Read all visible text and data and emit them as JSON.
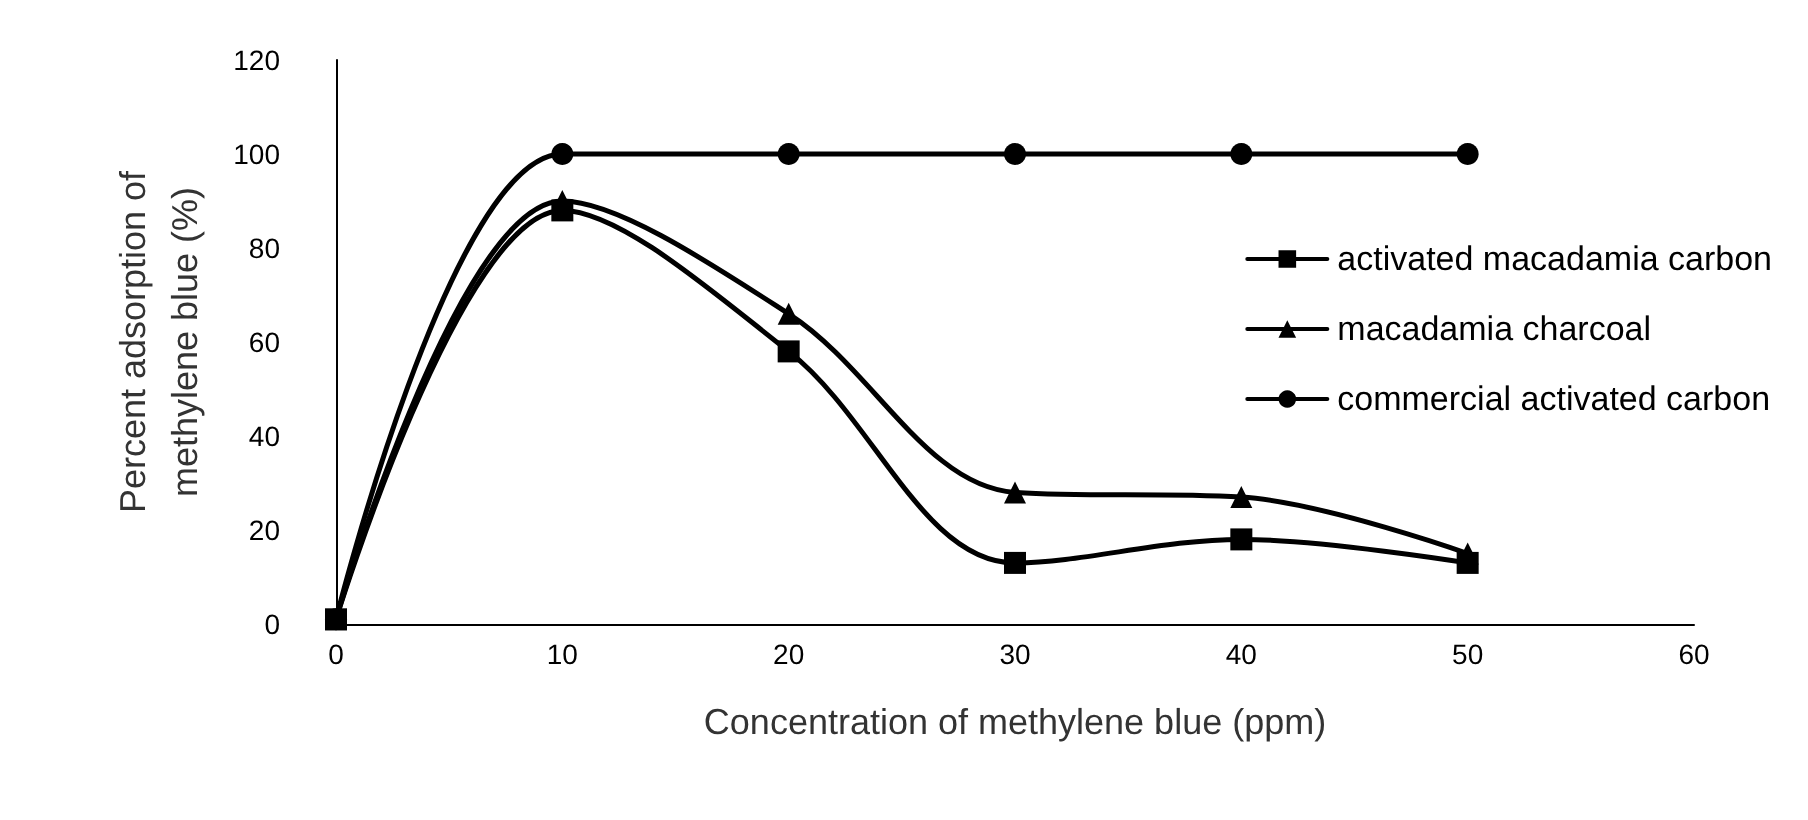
{
  "chart_data": {
    "type": "line",
    "xlabel": "Concentration of methylene blue (ppm)",
    "ylabel": "Percent adsorption of\nmethylene blue (%)",
    "x": [
      0,
      10,
      20,
      30,
      40,
      50
    ],
    "series": [
      {
        "name": "activated macadamia carbon",
        "color": "#000000",
        "marker": "square",
        "values": [
          1,
          88,
          58,
          13,
          18,
          13
        ]
      },
      {
        "name": "macadamia charcoal",
        "color": "#000000",
        "marker": "triangle",
        "values": [
          1,
          90,
          66,
          28,
          27,
          15
        ]
      },
      {
        "name": "commercial activated carbon",
        "color": "#000000",
        "marker": "circle",
        "values": [
          1,
          100,
          100,
          100,
          100,
          100
        ]
      }
    ],
    "xlim": [
      0,
      60
    ],
    "xticks": [
      0,
      10,
      20,
      30,
      40,
      50,
      60
    ],
    "ylim": [
      0,
      120
    ],
    "yticks": [
      0,
      20,
      40,
      60,
      80,
      100,
      120
    ],
    "grid": false,
    "legend": "right",
    "line_style": "solid"
  }
}
